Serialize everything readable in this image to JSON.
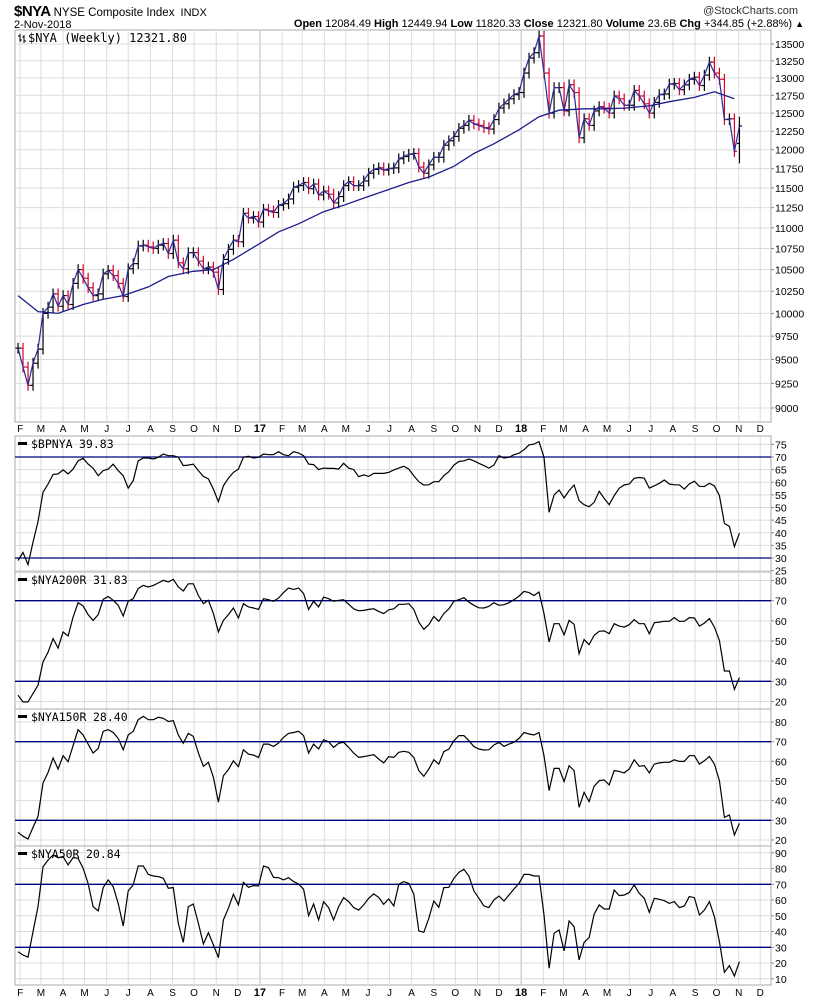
{
  "header": {
    "symbol": "$NYA",
    "name": "NYSE Composite Index",
    "exchange": "INDX",
    "watermark": "@StockCharts.com",
    "date": "2-Nov-2018",
    "open_label": "Open",
    "open": "12084.49",
    "high_label": "High",
    "high": "12449.94",
    "low_label": "Low",
    "low": "11820.33",
    "close_label": "Close",
    "close": "12321.80",
    "volume_label": "Volume",
    "volume": "23.6B",
    "chg_label": "Chg",
    "chg": "+344.85 (+2.88%)",
    "chg_arrow": "▲"
  },
  "colors": {
    "up_bar": "#000000",
    "down_bar": "#d6002a",
    "price_line": "#2b2b9c",
    "ma_line": "#1c1c8a",
    "ref_line": "#000080",
    "indicator_line": "#000000",
    "grid": "#dcdcdc"
  },
  "chart_data": [
    {
      "type": "ohlc",
      "legend": "$NYA (Weekly) 12321.80",
      "scale": "log",
      "x_start": "2016-01-29",
      "x_interval": "weekly",
      "ylim": [
        8900,
        13700
      ],
      "y_ticks": [
        "9000",
        "9250",
        "9500",
        "9750",
        "10000",
        "10250",
        "10500",
        "10750",
        "11000",
        "11250",
        "11500",
        "11750",
        "12000",
        "12250",
        "12500",
        "12750",
        "13000",
        "13250",
        "13500"
      ],
      "last_bar": {
        "open": 12084.49,
        "high": 12449.94,
        "low": 11820.33,
        "close": 12321.8
      },
      "closes": [
        9620,
        9420,
        9230,
        9460,
        9610,
        10000,
        10070,
        10220,
        10080,
        10200,
        10100,
        10340,
        10500,
        10400,
        10290,
        10200,
        10220,
        10450,
        10490,
        10430,
        10340,
        10190,
        10510,
        10570,
        10780,
        10790,
        10770,
        10750,
        10790,
        10810,
        10690,
        10850,
        10580,
        10510,
        10700,
        10700,
        10600,
        10510,
        10530,
        10470,
        10270,
        10620,
        10740,
        10850,
        10830,
        11180,
        11120,
        11140,
        11070,
        11230,
        11210,
        11190,
        11280,
        11300,
        11360,
        11510,
        11530,
        11570,
        11490,
        11550,
        11410,
        11460,
        11420,
        11310,
        11390,
        11530,
        11580,
        11530,
        11530,
        11590,
        11690,
        11740,
        11760,
        11730,
        11750,
        11760,
        11880,
        11910,
        11940,
        11950,
        11770,
        11690,
        11800,
        11900,
        11900,
        12060,
        12120,
        12180,
        12290,
        12330,
        12400,
        12350,
        12330,
        12300,
        12280,
        12410,
        12570,
        12630,
        12700,
        12760,
        12790,
        13070,
        13290,
        13370,
        13620,
        13070,
        12500,
        12860,
        12860,
        12530,
        12900,
        12790,
        12160,
        12420,
        12330,
        12530,
        12590,
        12570,
        12500,
        12740,
        12700,
        12610,
        12610,
        12820,
        12740,
        12630,
        12500,
        12650,
        12760,
        12770,
        12910,
        12920,
        12830,
        12900,
        12980,
        13010,
        12890,
        13040,
        13230,
        13070,
        12980,
        12410,
        12420,
        11977,
        12321.8
      ],
      "moving_average": [
        [
          "2016-01-29",
          10200
        ],
        [
          "2016-02-26",
          10020
        ],
        [
          "2016-03-25",
          10000
        ],
        [
          "2016-04-29",
          10100
        ],
        [
          "2016-05-27",
          10160
        ],
        [
          "2016-06-24",
          10200
        ],
        [
          "2016-07-29",
          10300
        ],
        [
          "2016-08-26",
          10420
        ],
        [
          "2016-09-30",
          10480
        ],
        [
          "2016-10-28",
          10500
        ],
        [
          "2016-11-25",
          10620
        ],
        [
          "2016-12-30",
          10800
        ],
        [
          "2017-01-27",
          10950
        ],
        [
          "2017-02-24",
          11050
        ],
        [
          "2017-03-31",
          11200
        ],
        [
          "2017-04-28",
          11280
        ],
        [
          "2017-05-26",
          11370
        ],
        [
          "2017-06-30",
          11480
        ],
        [
          "2017-07-28",
          11570
        ],
        [
          "2017-08-25",
          11640
        ],
        [
          "2017-09-29",
          11780
        ],
        [
          "2017-10-27",
          11950
        ],
        [
          "2017-11-24",
          12080
        ],
        [
          "2017-12-29",
          12270
        ],
        [
          "2018-01-26",
          12450
        ],
        [
          "2018-02-23",
          12540
        ],
        [
          "2018-03-30",
          12560
        ],
        [
          "2018-04-27",
          12560
        ],
        [
          "2018-05-25",
          12570
        ],
        [
          "2018-06-29",
          12600
        ],
        [
          "2018-07-27",
          12660
        ],
        [
          "2018-08-31",
          12720
        ],
        [
          "2018-09-28",
          12800
        ],
        [
          "2018-10-26",
          12700
        ]
      ]
    },
    {
      "type": "line",
      "name": "$BPNYA",
      "last": "39.83",
      "ylim": [
        24.5,
        78.3
      ],
      "ref_lines": [
        70,
        30
      ],
      "y_ticks": [
        "25",
        "30",
        "35",
        "40",
        "45",
        "50",
        "55",
        "60",
        "65",
        "70",
        "75"
      ],
      "values": [
        29,
        32.2,
        27.4,
        36.2,
        44.4,
        56,
        59.3,
        63.1,
        63.3,
        64.9,
        63.3,
        65.2,
        68.5,
        69.5,
        67.2,
        65.6,
        62.6,
        64.6,
        65.2,
        67.2,
        64.6,
        62.6,
        57.7,
        60.6,
        68.5,
        69.6,
        69.6,
        69.2,
        69.9,
        71.2,
        70.5,
        70.5,
        69.9,
        66.6,
        66.8,
        67.2,
        64.6,
        62.3,
        61.3,
        57.3,
        52.3,
        58.6,
        61.6,
        63.9,
        65.2,
        69.9,
        70.3,
        69.6,
        69.9,
        71.2,
        70.9,
        70.9,
        72.1,
        70.9,
        70.5,
        72.1,
        71.6,
        70.5,
        67.2,
        67,
        65,
        65.6,
        65.5,
        65.5,
        65.2,
        67.5,
        65.6,
        65,
        62.2,
        62.9,
        62.3,
        63.5,
        63.5,
        63.5,
        63.9,
        64.9,
        65.6,
        66.3,
        65.2,
        62.6,
        60.2,
        58.9,
        59,
        60.2,
        60.2,
        62.6,
        64.2,
        66.8,
        68.2,
        68.5,
        69.2,
        68.5,
        67.5,
        66.6,
        65.6,
        66.8,
        70.5,
        69.6,
        69.9,
        70.9,
        71.5,
        72.9,
        74.8,
        75.1,
        76.1,
        69.9,
        48.1,
        55,
        56.9,
        53.8,
        56.7,
        58.9,
        52.7,
        51.1,
        50.3,
        52,
        56.4,
        53.6,
        51.1,
        54.7,
        57.6,
        58.9,
        59.3,
        61.6,
        61.9,
        61.6,
        57.7,
        58.6,
        59.6,
        60.9,
        59.3,
        59,
        59,
        57.3,
        59.3,
        60.4,
        58.4,
        58.3,
        59.6,
        58.6,
        54.7,
        43.7,
        42.5,
        34.5,
        39.83
      ]
    },
    {
      "type": "line",
      "name": "$NYA200R",
      "last": "31.83",
      "ylim": [
        15,
        83
      ],
      "ref_lines": [
        70,
        30
      ],
      "y_ticks": [
        "20",
        "30",
        "40",
        "50",
        "60",
        "70",
        "80"
      ],
      "values": [
        23.1,
        19.8,
        19.8,
        23.9,
        28,
        39.6,
        44.5,
        51.2,
        46.5,
        54.5,
        52.5,
        61.9,
        69,
        67.4,
        63.1,
        60.2,
        63.1,
        70.7,
        72.1,
        70.2,
        67.7,
        62.4,
        69.7,
        71,
        76,
        77.6,
        76.8,
        77.6,
        78.8,
        80.1,
        79.3,
        80.6,
        76.8,
        74.8,
        78.4,
        78.4,
        72.6,
        68.5,
        70.2,
        63.6,
        54.5,
        60.2,
        63.1,
        66.4,
        61.4,
        68.5,
        66.9,
        66.4,
        65.7,
        71,
        70.5,
        69.7,
        71.3,
        74,
        76.3,
        75.6,
        76.3,
        73.5,
        65.7,
        69.7,
        66.9,
        71.8,
        71,
        69.7,
        70.2,
        70.5,
        68.2,
        66,
        65,
        65.2,
        65.7,
        66,
        64.7,
        63.6,
        65.5,
        66,
        68.2,
        68.2,
        68.5,
        65.7,
        59.4,
        55.8,
        58.1,
        62.2,
        59.8,
        63.6,
        66,
        69.7,
        70.5,
        71.5,
        69.3,
        67.7,
        66.5,
        66.4,
        67.2,
        69,
        67.7,
        68,
        69,
        70.5,
        72.3,
        74.6,
        74,
        72.6,
        74.3,
        63.6,
        49.5,
        58.6,
        58.6,
        53.1,
        60.2,
        58.3,
        43.7,
        50.7,
        48.2,
        52.8,
        54.8,
        55,
        53.6,
        58.6,
        57.4,
        56.9,
        58.1,
        60.6,
        58.6,
        58.6,
        53.6,
        59.1,
        59.4,
        59.8,
        59.8,
        61.6,
        59.8,
        59.8,
        61.6,
        61.4,
        57.4,
        58.9,
        61.1,
        56.9,
        50.3,
        35.1,
        35.1,
        26,
        31.83
      ]
    },
    {
      "type": "line",
      "name": "$NYA150R",
      "last": "28.40",
      "ylim": [
        17,
        86
      ],
      "ref_lines": [
        70,
        30
      ],
      "y_ticks": [
        "20",
        "30",
        "40",
        "50",
        "60",
        "70",
        "80"
      ],
      "values": [
        23.9,
        21.9,
        20.5,
        26.4,
        32,
        49,
        54.4,
        61.7,
        56.1,
        62.9,
        59.8,
        68,
        76.1,
        73.4,
        68.8,
        64.2,
        66.6,
        75.3,
        76.1,
        74.7,
        71.7,
        65.9,
        73.4,
        75.3,
        81.2,
        82.9,
        81.2,
        81.2,
        82.4,
        81.9,
        80.3,
        80.7,
        73.4,
        69.2,
        74.2,
        72.7,
        64.2,
        57.5,
        59.5,
        51.9,
        39.2,
        52.7,
        55.8,
        60.3,
        57.3,
        65.9,
        63.7,
        63.2,
        62,
        68.8,
        68.8,
        67.6,
        69.3,
        72.2,
        74.2,
        74.7,
        75.3,
        73.1,
        64.2,
        68.8,
        66.3,
        71,
        70,
        67.1,
        69.2,
        69.7,
        67.1,
        64.2,
        62,
        62.4,
        62.9,
        63.4,
        61.2,
        59.2,
        62.4,
        62,
        64.6,
        65.1,
        64.6,
        62,
        55.3,
        52.4,
        56.1,
        60.8,
        58.6,
        64.9,
        66.3,
        70.5,
        73.1,
        73.1,
        70.5,
        67.5,
        66.3,
        65.8,
        65.9,
        68.3,
        69.7,
        67.6,
        68.8,
        69.7,
        71.7,
        74.7,
        73.9,
        73.4,
        74.7,
        62.9,
        45.1,
        56.4,
        56.4,
        49.7,
        57.8,
        55.3,
        36.6,
        44.2,
        39.5,
        47.3,
        50.2,
        50.5,
        48,
        55.3,
        54.9,
        54.1,
        56.1,
        60.8,
        57.5,
        57.8,
        54.1,
        58.6,
        59.2,
        59.5,
        59.5,
        60.8,
        60,
        60,
        62.9,
        62.9,
        58.6,
        60.3,
        62.5,
        58.6,
        50.2,
        31.5,
        32.7,
        22.5,
        28.4
      ]
    },
    {
      "type": "line",
      "name": "$NYA50R",
      "last": "20.84",
      "ylim": [
        6,
        94
      ],
      "ref_lines": [
        70,
        30
      ],
      "y_ticks": [
        "10",
        "20",
        "30",
        "40",
        "50",
        "60",
        "70",
        "80",
        "90"
      ],
      "values": [
        27.2,
        25.1,
        23.7,
        39.9,
        55.8,
        81.2,
        85.4,
        88.6,
        86.9,
        87.6,
        82.3,
        86.9,
        86.5,
        80.2,
        70.6,
        55.8,
        53.1,
        67.9,
        72.8,
        68.5,
        57.9,
        43.5,
        65.8,
        69.6,
        81.6,
        81.6,
        76.3,
        75.3,
        74.9,
        73.8,
        67.5,
        67.9,
        45.2,
        33.2,
        55.8,
        57.5,
        45.2,
        32.1,
        39.3,
        31.5,
        23.4,
        47.4,
        54.8,
        63.7,
        56.9,
        71.3,
        68.1,
        69.2,
        68.9,
        81.6,
        80.6,
        74.4,
        74.2,
        72.8,
        74.2,
        71.7,
        70.2,
        66.8,
        50.1,
        57.5,
        47.4,
        59,
        55.2,
        47.4,
        55.8,
        61.5,
        59,
        55.2,
        53.7,
        56.9,
        61.1,
        63.9,
        61.7,
        57.3,
        60.7,
        56.2,
        70,
        71.7,
        70.6,
        63.7,
        40.4,
        39.5,
        48.4,
        59.4,
        55.4,
        67.9,
        68.1,
        73.8,
        77.6,
        79.5,
        75.3,
        65.8,
        61.1,
        56.2,
        55.2,
        60.1,
        62.6,
        59.4,
        63.2,
        67,
        70.6,
        76.3,
        76.3,
        75.3,
        75.3,
        50.5,
        16.7,
        38.9,
        41,
        27.7,
        46.7,
        43.1,
        22,
        33.2,
        36.1,
        51,
        56.9,
        54.3,
        54.3,
        66.4,
        62.8,
        63.2,
        64.7,
        69.6,
        64.3,
        61.1,
        52.2,
        61.1,
        60.5,
        59.6,
        57.9,
        59,
        55.2,
        56.2,
        62.2,
        61.5,
        50.5,
        53.7,
        59,
        49.5,
        33.6,
        14.1,
        18.4,
        11.8,
        20.84
      ]
    }
  ],
  "x_axis": {
    "first_month": "2016-02",
    "labels": [
      "F",
      "M",
      "A",
      "M",
      "J",
      "J",
      "A",
      "S",
      "O",
      "N",
      "D",
      "17",
      "F",
      "M",
      "A",
      "M",
      "J",
      "J",
      "A",
      "S",
      "O",
      "N",
      "D",
      "18",
      "F",
      "M",
      "A",
      "M",
      "J",
      "J",
      "A",
      "S",
      "O",
      "N",
      "D"
    ]
  }
}
